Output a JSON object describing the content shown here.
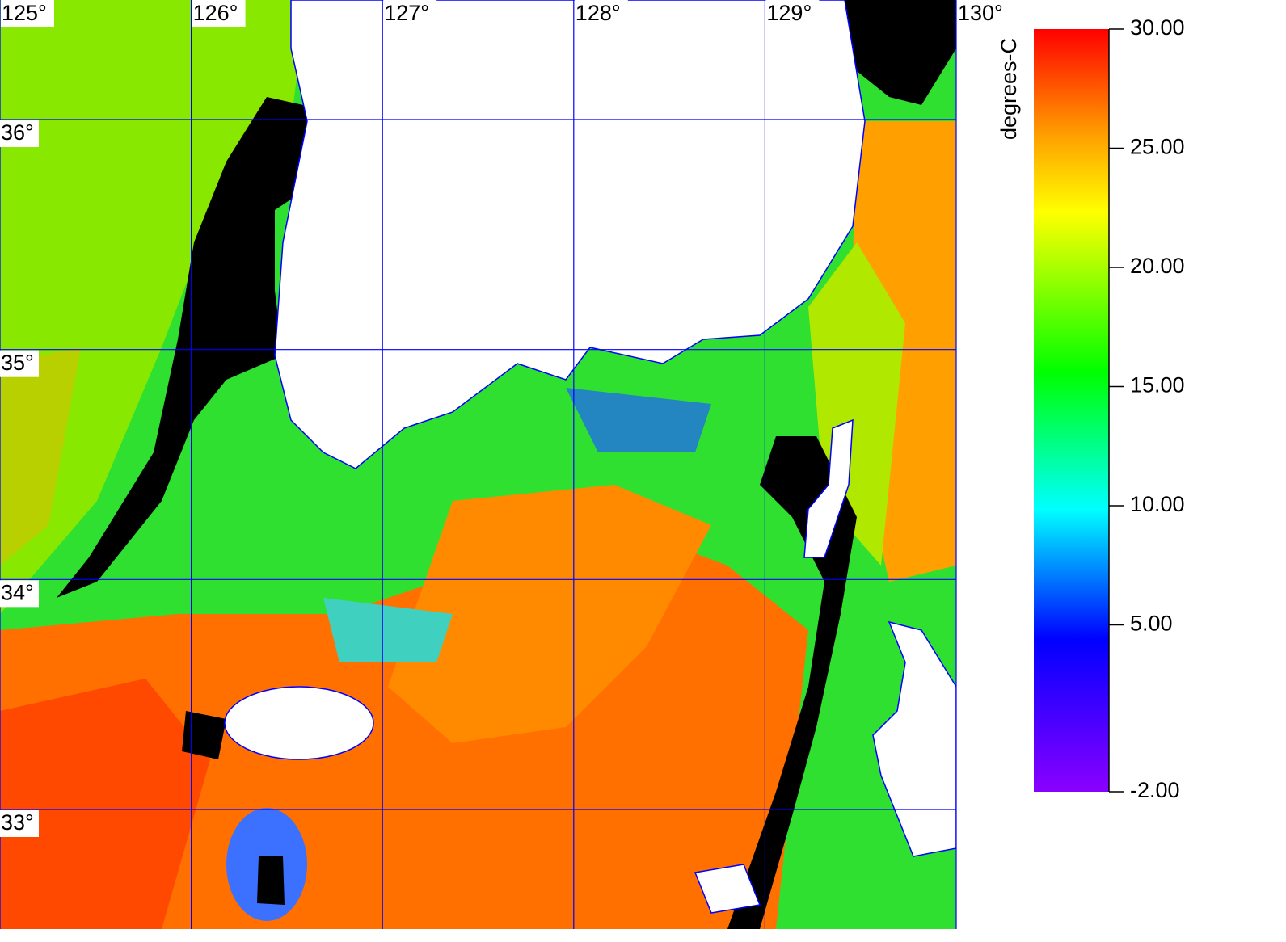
{
  "map": {
    "lon_lim": [
      125,
      130
    ],
    "lat_lim": [
      32.48,
      36.52
    ],
    "lon_ticks": [
      {
        "value": 125,
        "label": "125°"
      },
      {
        "value": 126,
        "label": "126°"
      },
      {
        "value": 127,
        "label": "127°"
      },
      {
        "value": 128,
        "label": "128°"
      },
      {
        "value": 129,
        "label": "129°"
      },
      {
        "value": 130,
        "label": "130°"
      }
    ],
    "lat_ticks": [
      {
        "value": 33,
        "label": "33°"
      },
      {
        "value": 34,
        "label": "34°"
      },
      {
        "value": 35,
        "label": "35°"
      },
      {
        "value": 36,
        "label": "36°"
      }
    ],
    "colorbar": {
      "title": "degrees-C",
      "lim": [
        -2,
        30
      ],
      "ticks": [
        {
          "value": 30,
          "label": "30.00"
        },
        {
          "value": 25,
          "label": "25.00"
        },
        {
          "value": 20,
          "label": "20.00"
        },
        {
          "value": 15,
          "label": "15.00"
        },
        {
          "value": 10,
          "label": "10.00"
        },
        {
          "value": 5,
          "label": "5.00"
        },
        {
          "value": -2,
          "label": "-2.00"
        }
      ]
    }
  }
}
